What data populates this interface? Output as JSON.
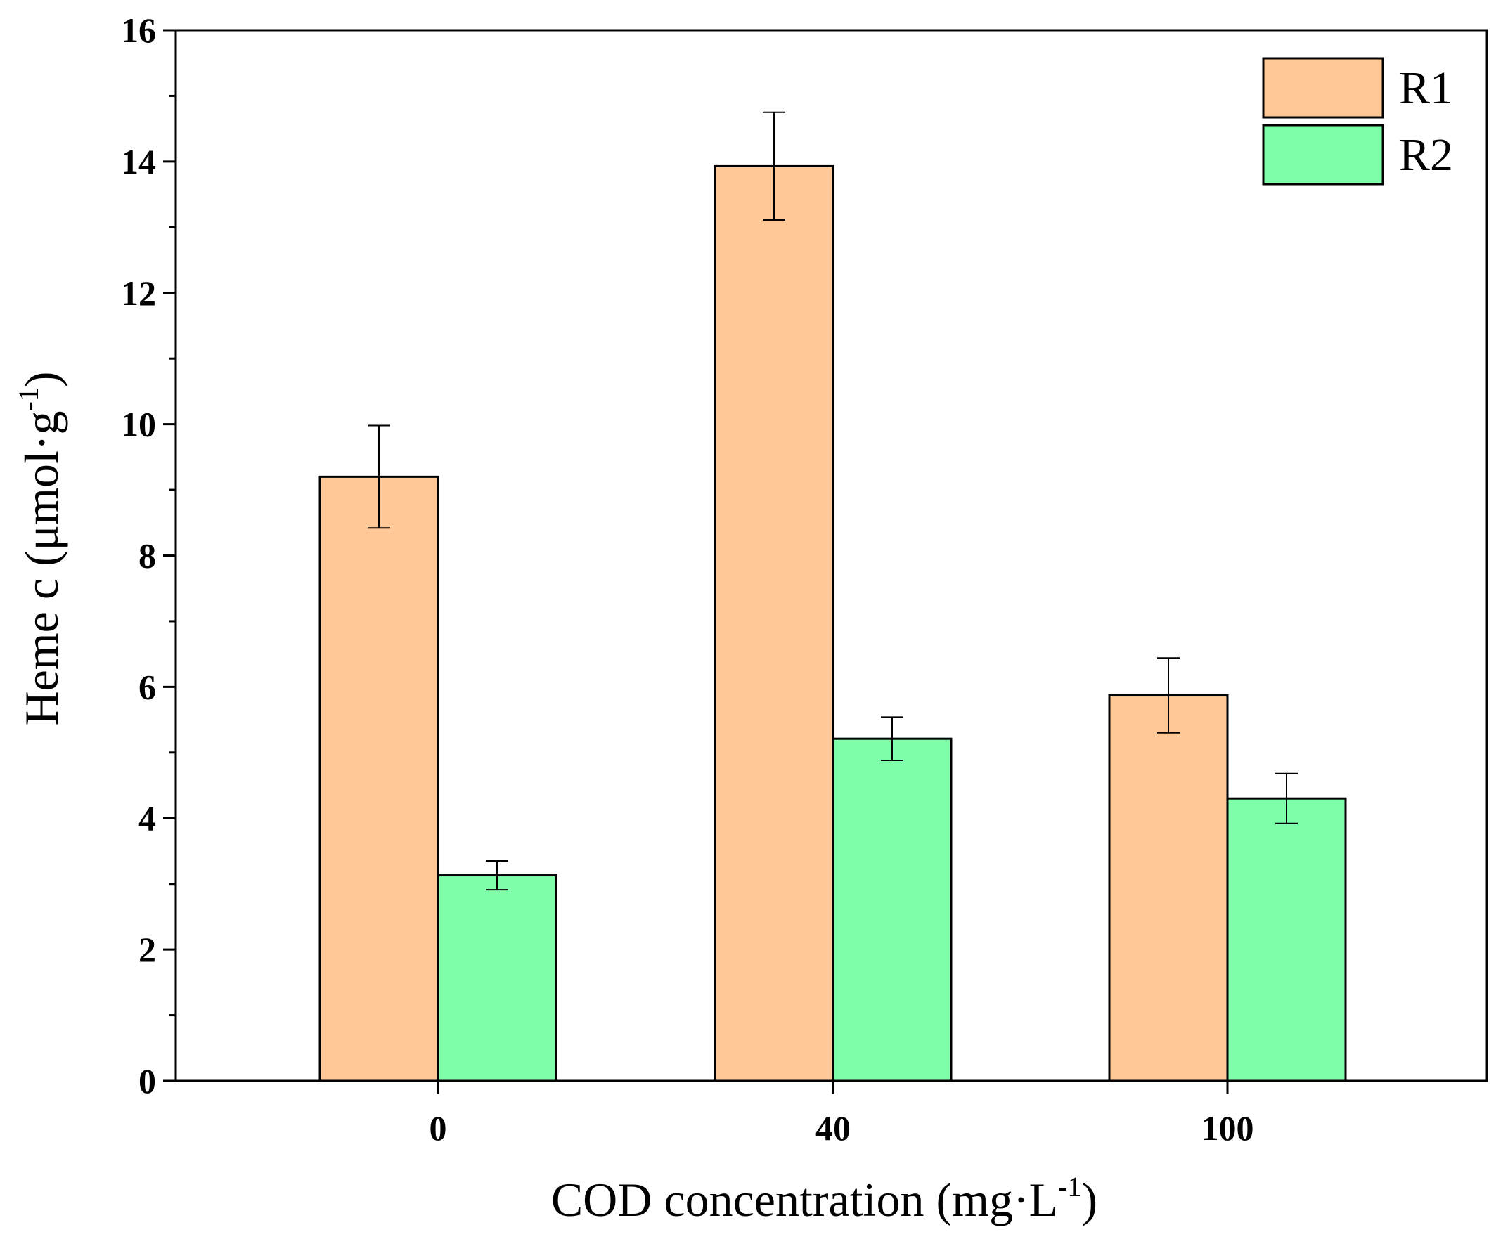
{
  "chart_data": {
    "type": "bar",
    "categories": [
      "0",
      "40",
      "100"
    ],
    "series": [
      {
        "name": "R1",
        "values": [
          9.2,
          13.93,
          5.87
        ],
        "errors": [
          0.78,
          0.82,
          0.57
        ],
        "color": "#FFC896"
      },
      {
        "name": "R2",
        "values": [
          3.13,
          5.21,
          4.3
        ],
        "errors": [
          0.22,
          0.33,
          0.38
        ],
        "color": "#80FFAA"
      }
    ],
    "ylim": [
      0,
      16
    ],
    "yticks": [
      "0",
      "2",
      "4",
      "6",
      "8",
      "10",
      "12",
      "14",
      "16"
    ],
    "xlabel": {
      "main": "COD concentration (mg·L",
      "sup": "-1",
      "end": ")"
    },
    "ylabel": {
      "main": "Heme c (μmol·g",
      "sup": "-1",
      "end": ")"
    },
    "legend_position": "top-right",
    "title": ""
  }
}
